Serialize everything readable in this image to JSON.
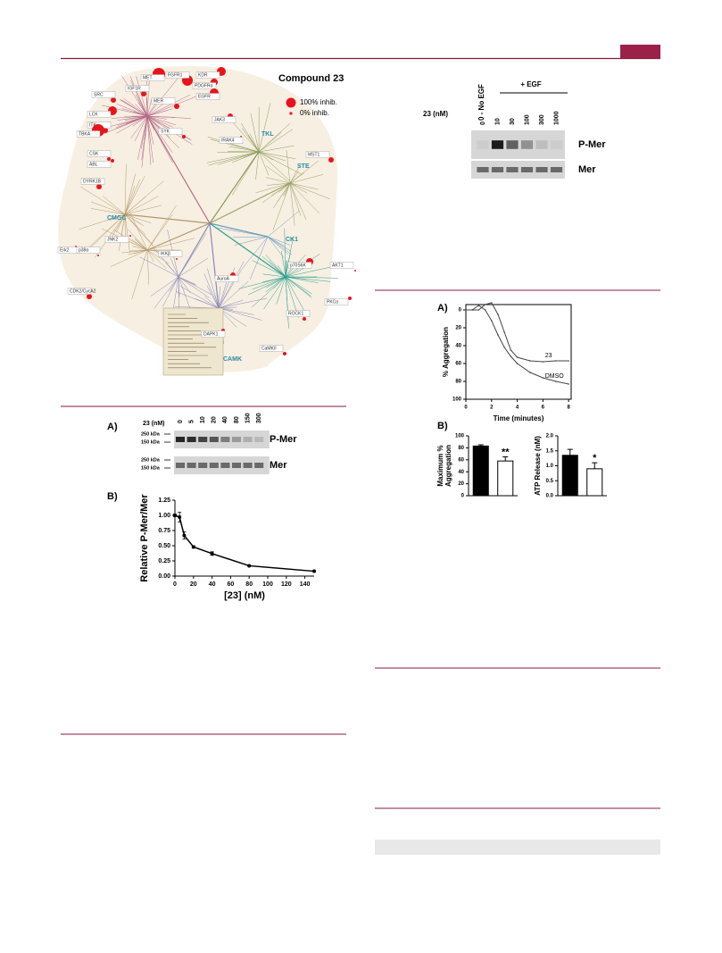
{
  "kinome": {
    "title": "Compound 23",
    "legend": [
      "100% inhib.",
      "0% inhib."
    ],
    "kinases": [
      "MET",
      "FGFR1",
      "KDR",
      "IGF1R",
      "PDGFRα",
      "MER",
      "EGFR",
      "SRC",
      "LCK",
      "ITK",
      "TBKA",
      "SYK",
      "JAK3",
      "CSK",
      "ABL",
      "DYRK1B",
      "IRAK4",
      "MST1",
      "Erk2",
      "p38α",
      "JNK2",
      "IKKβ",
      "p70S6K",
      "AKT1",
      "AuroA",
      "CDK2/CycA2",
      "PKCα",
      "ROCK1",
      "DAPK1",
      "CaMKII"
    ],
    "groups": [
      "TKL",
      "STE",
      "CMGC",
      "CK1",
      "CAMK"
    ]
  },
  "blot_left": {
    "panel": "A)",
    "dose_label": "23 (nM)",
    "lanes": [
      "0",
      "5",
      "10",
      "20",
      "40",
      "80",
      "150",
      "300"
    ],
    "markers": [
      "250 kDa",
      "150 kDa"
    ],
    "bands": [
      "P-Mer",
      "Mer"
    ]
  },
  "blot_right": {
    "condition_labels": [
      "0 - No EGF",
      "+ EGF"
    ],
    "dose_label": "23 (nM)",
    "lanes": [
      "0",
      "10",
      "30",
      "100",
      "300",
      "1000"
    ],
    "bands": [
      "P-Mer",
      "Mer"
    ]
  },
  "chart_data": [
    {
      "type": "line",
      "panel": "B)",
      "x_label": "[23] (nM)",
      "y_label": "Relative P-Mer/Mer",
      "x": [
        0,
        5,
        10,
        20,
        40,
        80,
        150
      ],
      "series": [
        {
          "color": "#000000",
          "values": [
            1.0,
            0.97,
            0.67,
            0.48,
            0.37,
            0.17,
            0.08
          ],
          "errors": [
            0.02,
            0.08,
            0.06,
            0.02,
            0.03,
            0.01,
            0.01
          ]
        }
      ],
      "xlim": [
        0,
        150
      ],
      "xticks": [
        0,
        20,
        40,
        60,
        80,
        100,
        120,
        140
      ],
      "ylim": [
        0,
        1.25
      ],
      "yticks": [
        {
          "value": 0,
          "label": "0.00"
        },
        0.25,
        {
          "value": 0.5,
          "label": "0.50"
        },
        0.75,
        {
          "value": 1,
          "label": "1.00"
        },
        1.25
      ]
    },
    {
      "type": "line",
      "panel": "A)",
      "x_label": "Time (minutes)",
      "y_label": "% Aggregation",
      "x": [
        0,
        0.5,
        1,
        1.5,
        2,
        2.5,
        3,
        3.5,
        4,
        5,
        6,
        7,
        8
      ],
      "series": [
        {
          "name": "DMSO",
          "color": "#444444",
          "values": [
            0,
            0,
            -5,
            0,
            12,
            28,
            42,
            52,
            60,
            70,
            76,
            80,
            83
          ]
        },
        {
          "name": "23",
          "color": "#444444",
          "values": [
            0,
            0,
            0,
            -6,
            -8,
            5,
            25,
            45,
            53,
            57,
            58,
            57,
            57
          ]
        }
      ],
      "xlim": [
        0,
        8.2
      ],
      "xticks": [
        0,
        2,
        4,
        6,
        8
      ],
      "ylim": [
        100,
        -6
      ],
      "yticks": [
        0,
        20,
        40,
        60,
        80,
        100
      ]
    },
    {
      "type": "bar",
      "panel": "B)",
      "y_label": [
        "Maximum %",
        "Aggregation"
      ],
      "categories": [
        null,
        null
      ],
      "values": [
        83,
        58
      ],
      "errors": [
        2,
        7
      ],
      "colors": [
        "#000000",
        "#ffffff"
      ],
      "annotation": "**",
      "ylim": [
        0,
        100
      ],
      "yticks": [
        0,
        20,
        40,
        60,
        80,
        100
      ]
    },
    {
      "type": "bar",
      "y_label": [
        "ATP Release (nM)"
      ],
      "categories": [
        null,
        null
      ],
      "values": [
        1.35,
        0.9
      ],
      "errors": [
        0.2,
        0.2
      ],
      "colors": [
        "#000000",
        "#ffffff"
      ],
      "annotation": "*",
      "ylim": [
        0,
        2
      ],
      "yticks": [
        {
          "value": 0,
          "label": "0.0"
        },
        0.5,
        {
          "value": 1,
          "label": "1.0"
        },
        1.5,
        {
          "value": 2,
          "label": "2.0"
        }
      ]
    }
  ]
}
